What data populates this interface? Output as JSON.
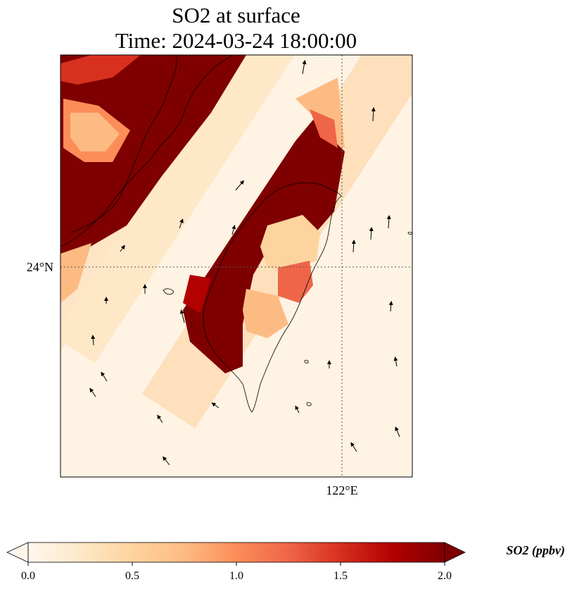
{
  "title": {
    "line1": "SO2 at surface",
    "line2": "Time: 2024-03-24 18:00:00"
  },
  "map": {
    "lat_label": "24°N",
    "lon_label": "122°E",
    "gridlines": "dotted",
    "colormap": "OrRd",
    "color_stops": [
      "#fff7ec",
      "#fee8c8",
      "#fdd49e",
      "#fdbb84",
      "#fc8d59",
      "#ef6548",
      "#d7301f",
      "#b30000",
      "#7f0000"
    ]
  },
  "colorbar": {
    "label": "SO2 (ppbv)",
    "ticks": [
      "0.0",
      "0.5",
      "1.0",
      "1.5",
      "2.0"
    ],
    "range": [
      0.0,
      2.0
    ],
    "extend": "both"
  }
}
